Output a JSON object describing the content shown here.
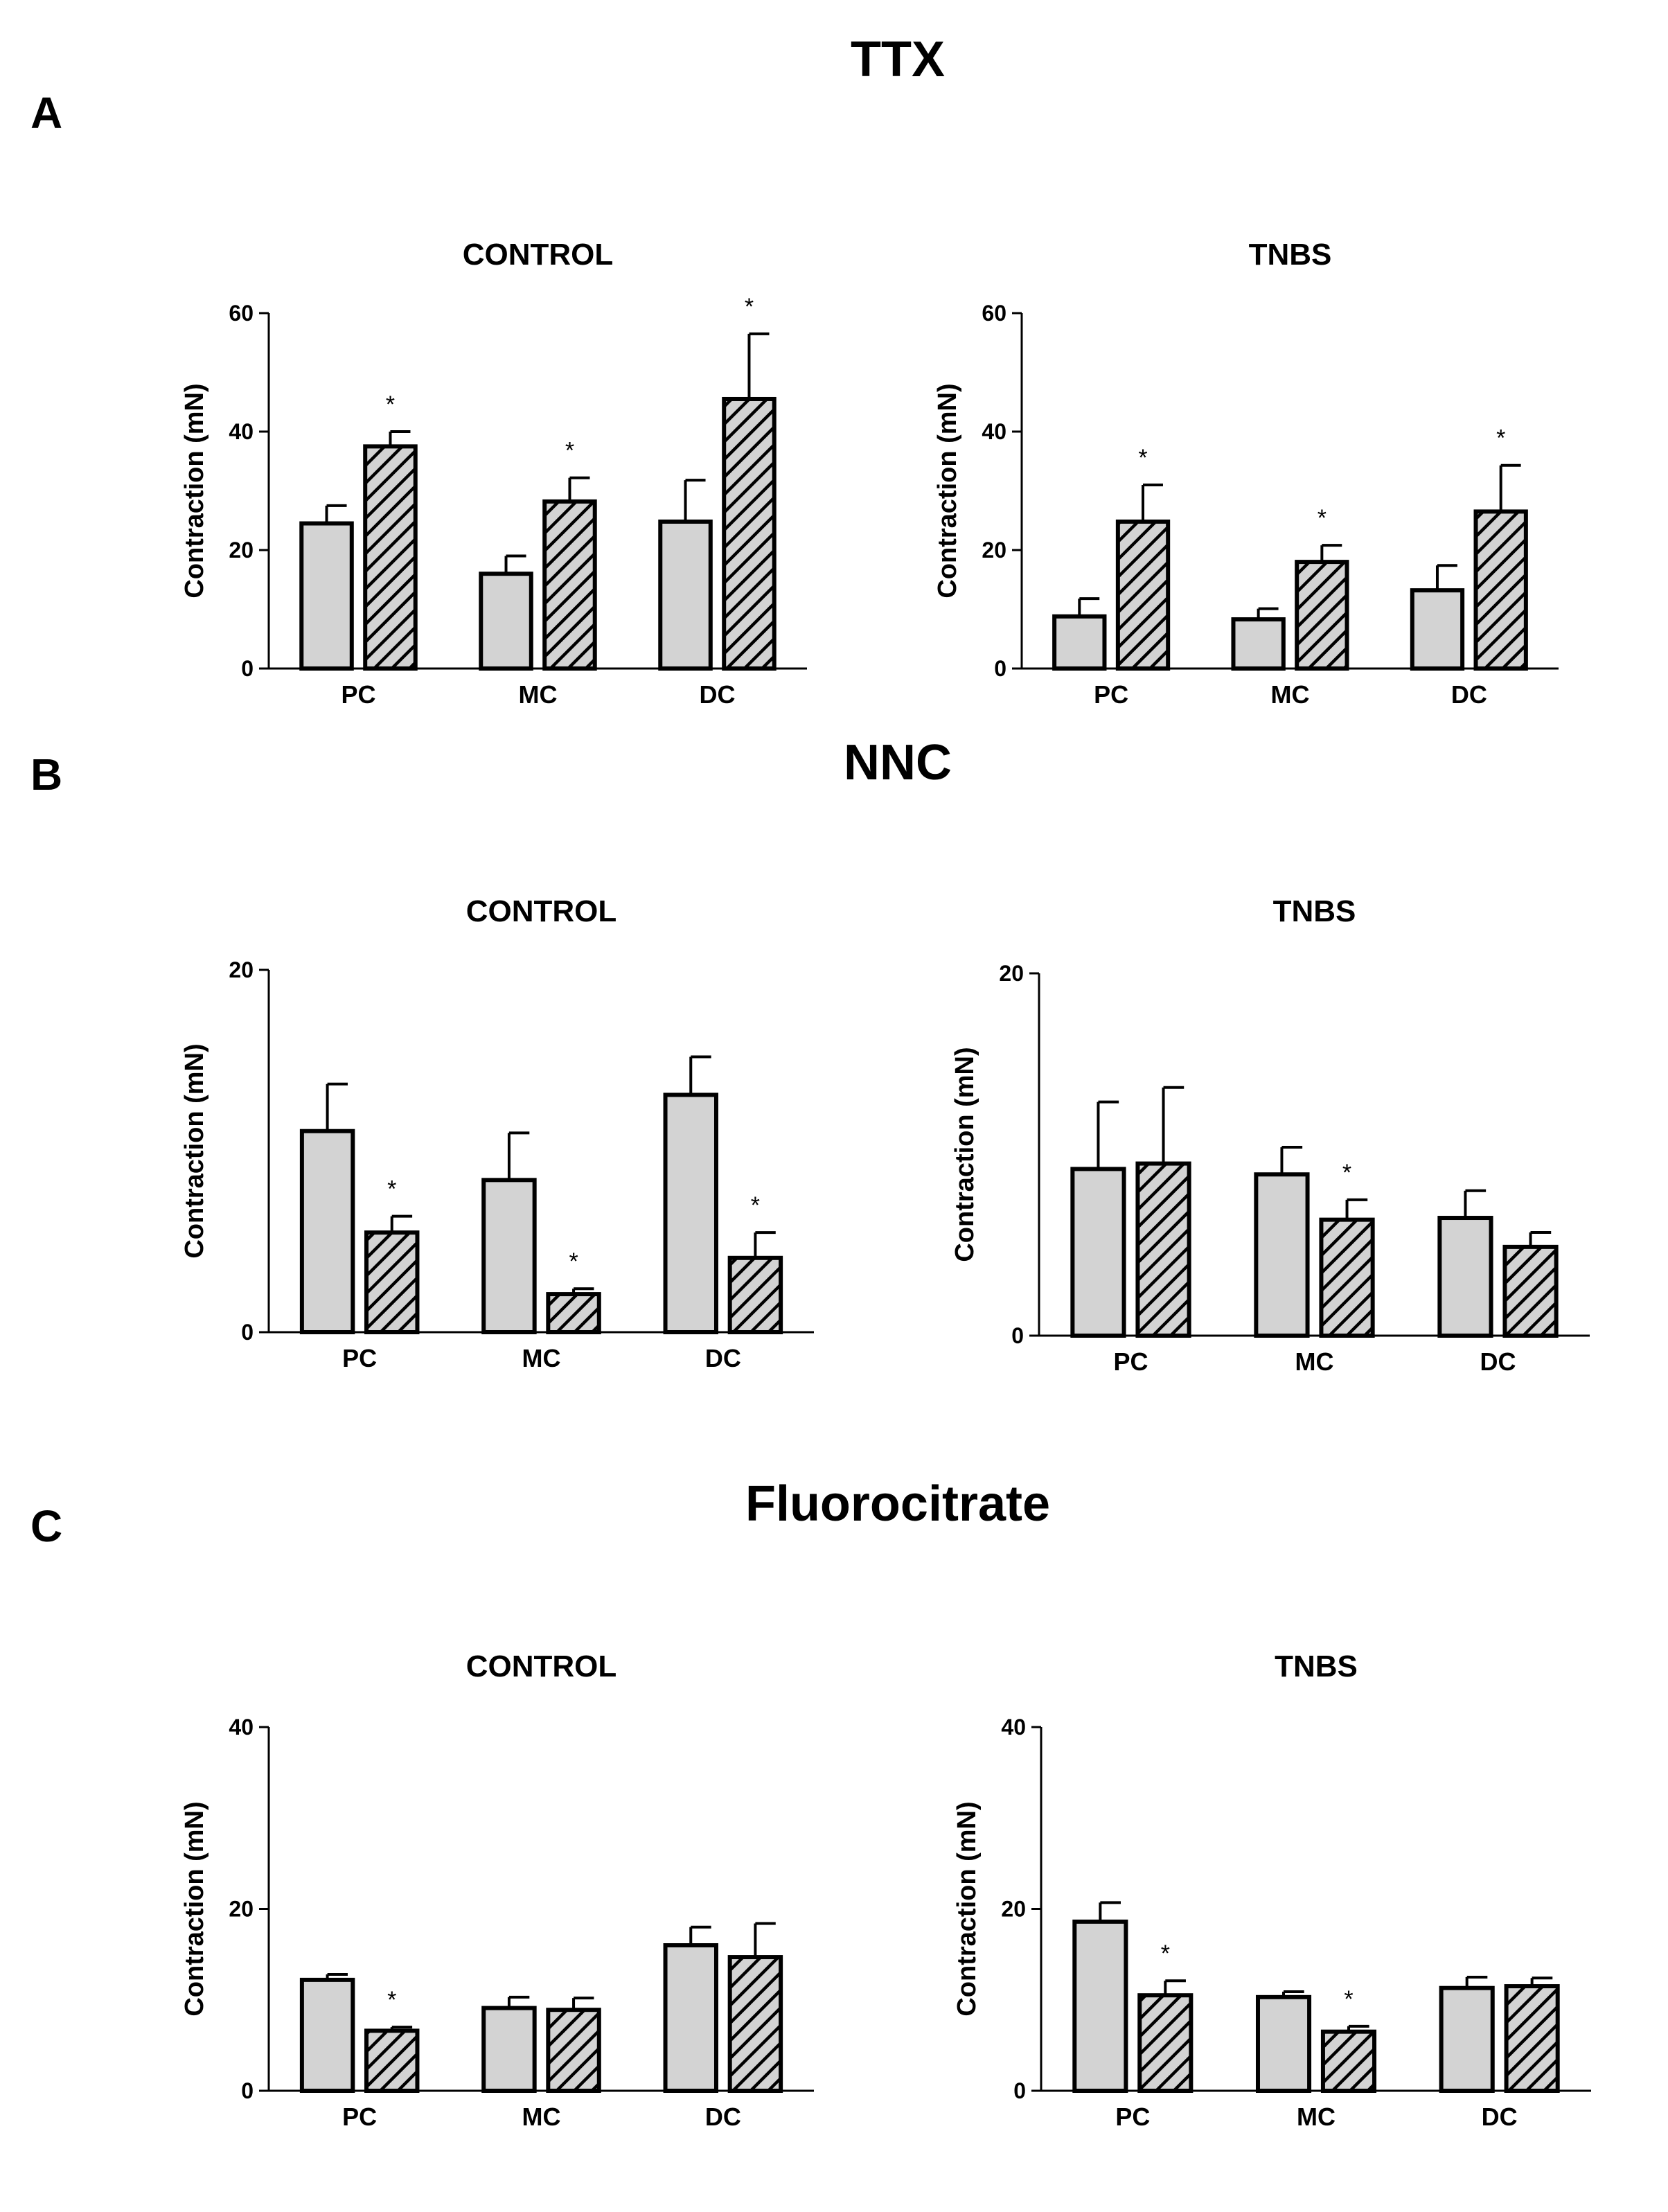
{
  "sections": [
    {
      "letter": "A",
      "title": "TTX"
    },
    {
      "letter": "B",
      "title": "NNC"
    },
    {
      "letter": "C",
      "title": "Fluorocitrate"
    }
  ],
  "colors": {
    "bar_fill": "#d3d3d3",
    "hatch": "#000000",
    "axis": "#000000"
  },
  "chart_data": [
    {
      "type": "bar",
      "section": "A",
      "title": "CONTROL",
      "ylabel": "Contraction (mN)",
      "ylim": [
        0,
        60
      ],
      "yticks": [
        0,
        20,
        40,
        60
      ],
      "categories": [
        "PC",
        "MC",
        "DC"
      ],
      "series": [
        {
          "name": "plain",
          "values": [
            24.5,
            16,
            24.8
          ],
          "errors": [
            3,
            3,
            7
          ]
        },
        {
          "name": "hatched",
          "values": [
            37.5,
            28.2,
            45.5
          ],
          "errors": [
            2.5,
            4,
            11
          ],
          "significant": [
            true,
            true,
            true
          ]
        }
      ]
    },
    {
      "type": "bar",
      "section": "A",
      "title": "TNBS",
      "ylabel": "Contraction (mN)",
      "ylim": [
        0,
        60
      ],
      "yticks": [
        0,
        20,
        40,
        60
      ],
      "categories": [
        "PC",
        "MC",
        "DC"
      ],
      "series": [
        {
          "name": "plain",
          "values": [
            8.8,
            8.3,
            13.2
          ],
          "errors": [
            3,
            1.8,
            4.2
          ]
        },
        {
          "name": "hatched",
          "values": [
            24.8,
            18,
            26.5
          ],
          "errors": [
            6.2,
            2.8,
            7.8
          ],
          "significant": [
            true,
            true,
            true
          ]
        }
      ]
    },
    {
      "type": "bar",
      "section": "B",
      "title": "CONTROL",
      "ylabel": "Contraction (mN)",
      "ylim": [
        0,
        20
      ],
      "yticks": [
        0,
        20
      ],
      "categories": [
        "PC",
        "MC",
        "DC"
      ],
      "series": [
        {
          "name": "plain",
          "values": [
            11.1,
            8.4,
            13.1
          ],
          "errors": [
            2.6,
            2.6,
            2.1
          ]
        },
        {
          "name": "hatched",
          "values": [
            5.5,
            2.1,
            4.1
          ],
          "errors": [
            0.9,
            0.3,
            1.4
          ],
          "significant": [
            true,
            true,
            true
          ]
        }
      ]
    },
    {
      "type": "bar",
      "section": "B",
      "title": "TNBS",
      "ylabel": "Contraction (mN)",
      "ylim": [
        0,
        20
      ],
      "yticks": [
        0,
        20
      ],
      "categories": [
        "PC",
        "MC",
        "DC"
      ],
      "series": [
        {
          "name": "plain",
          "values": [
            9.2,
            8.9,
            6.5
          ],
          "errors": [
            3.7,
            1.5,
            1.5
          ]
        },
        {
          "name": "hatched",
          "values": [
            9.5,
            6.4,
            4.9
          ],
          "errors": [
            4.2,
            1.1,
            0.8
          ],
          "significant": [
            false,
            true,
            false
          ]
        }
      ]
    },
    {
      "type": "bar",
      "section": "C",
      "title": "CONTROL",
      "ylabel": "Contraction (mN)",
      "ylim": [
        0,
        40
      ],
      "yticks": [
        0,
        20,
        40
      ],
      "categories": [
        "PC",
        "MC",
        "DC"
      ],
      "series": [
        {
          "name": "plain",
          "values": [
            12.2,
            9.1,
            16
          ],
          "errors": [
            0.6,
            1.2,
            2
          ]
        },
        {
          "name": "hatched",
          "values": [
            6.6,
            8.9,
            14.7
          ],
          "errors": [
            0.4,
            1.3,
            3.7
          ],
          "significant": [
            true,
            false,
            false
          ]
        }
      ]
    },
    {
      "type": "bar",
      "section": "C",
      "title": "TNBS",
      "ylabel": "Contraction (mN)",
      "ylim": [
        0,
        40
      ],
      "yticks": [
        0,
        20,
        40
      ],
      "categories": [
        "PC",
        "MC",
        "DC"
      ],
      "series": [
        {
          "name": "plain",
          "values": [
            18.6,
            10.3,
            11.3
          ],
          "errors": [
            2.1,
            0.6,
            1.2
          ]
        },
        {
          "name": "hatched",
          "values": [
            10.5,
            6.5,
            11.5
          ],
          "errors": [
            1.6,
            0.6,
            0.9
          ],
          "significant": [
            true,
            true,
            false
          ]
        }
      ]
    }
  ]
}
